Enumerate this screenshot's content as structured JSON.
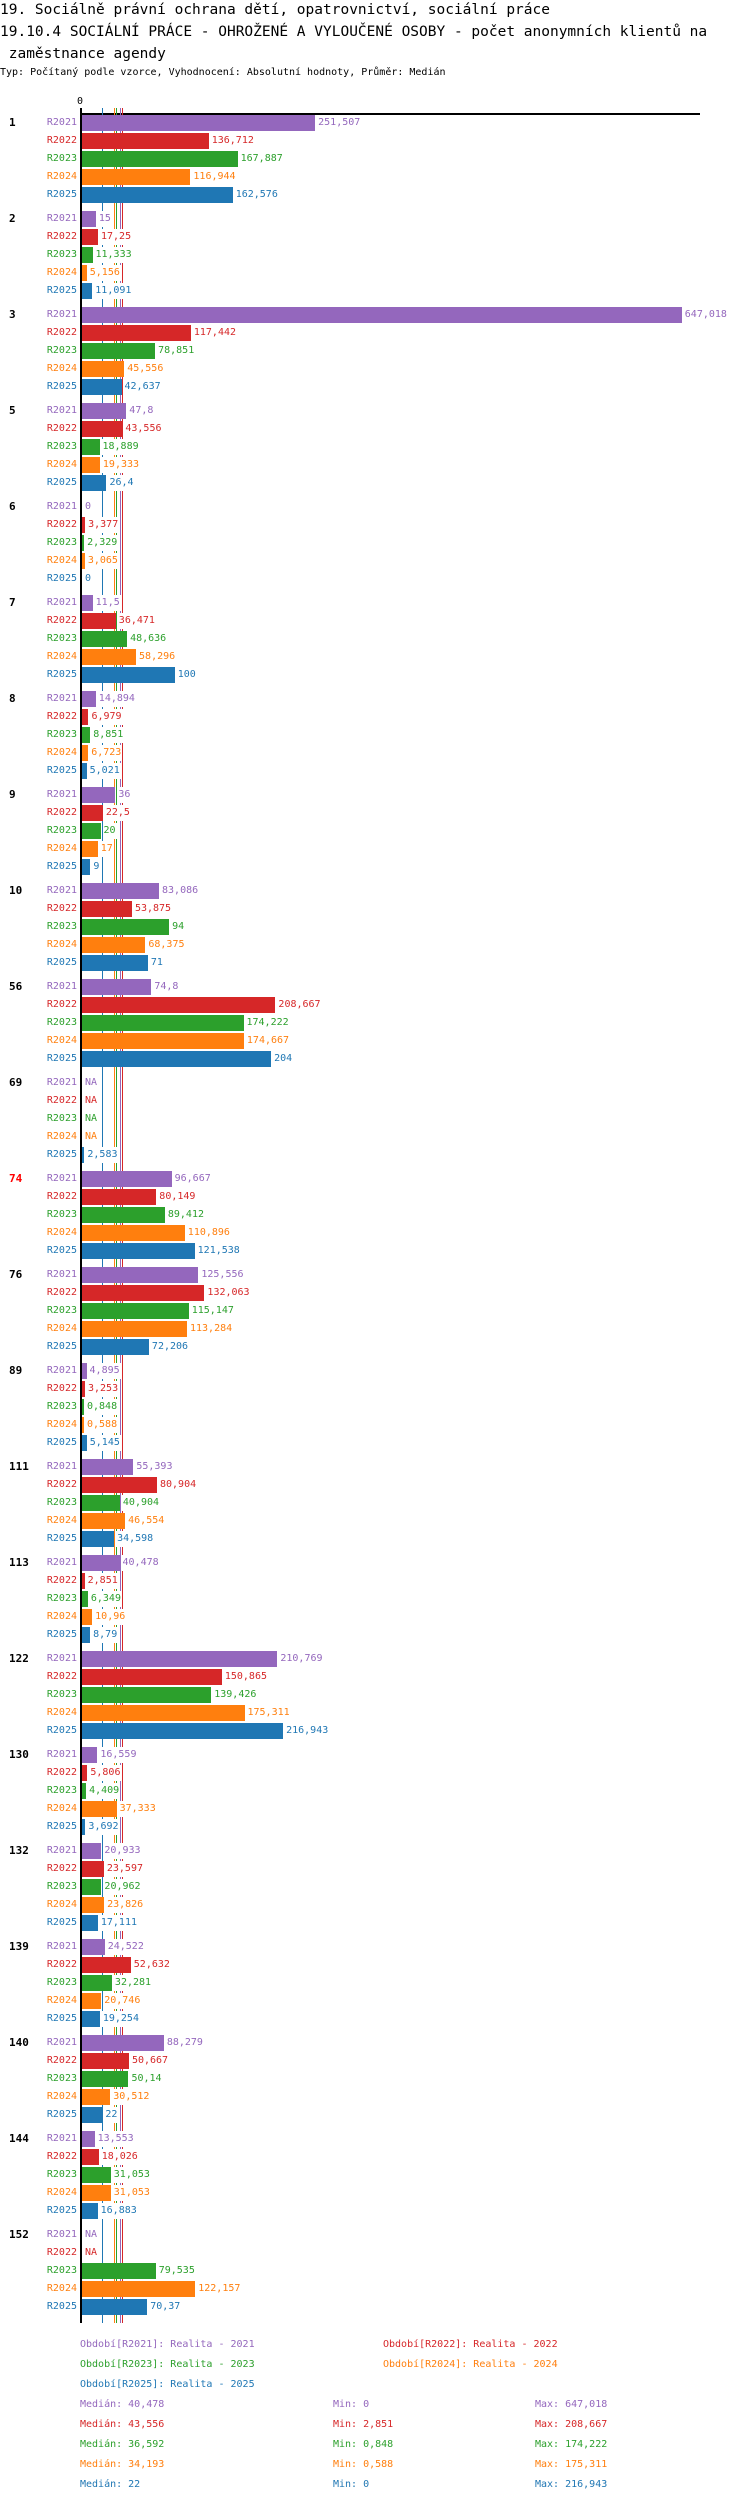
{
  "header": {
    "title_line1": "19. Sociálně právní ochrana dětí, opatrovnictví, sociální práce",
    "title_line2": "19.10.4 SOCIÁLNÍ PRÁCE - OHROŽENÉ A VYLOUČENÉ OSOBY - počet anonymních klientů na",
    "title_line3": " zaměstnance agendy",
    "subtitle": "Typ: Počítaný podle vzorce, Vyhodnocení: Absolutní hodnoty, Průměr: Medián"
  },
  "chart_data": {
    "type": "bar",
    "orientation": "horizontal",
    "title": "19.10.4 SOCIÁLNÍ PRÁCE - OHROŽENÉ A VYLOUČENÉ OSOBY - počet anonymních klientů na zaměstnance agendy",
    "axis_zero_label": "0",
    "xlim": [
      0,
      670
    ],
    "series_names": [
      "R2021",
      "R2022",
      "R2023",
      "R2024",
      "R2025"
    ],
    "colors": [
      "#9467bd",
      "#d62728",
      "#2ca02c",
      "#ff7f0e",
      "#1f77b4"
    ],
    "na_label": "NA",
    "highlight_group": "74",
    "highlight_color": "#ff0000",
    "groups": [
      {
        "label": "1",
        "values": [
          251.507,
          136.712,
          167.887,
          116.944,
          162.576
        ]
      },
      {
        "label": "2",
        "values": [
          15,
          17.25,
          11.333,
          5.156,
          11.091
        ]
      },
      {
        "label": "3",
        "values": [
          647.018,
          117.442,
          78.851,
          45.556,
          42.637
        ]
      },
      {
        "label": "5",
        "values": [
          47.8,
          43.556,
          18.889,
          19.333,
          26.4
        ]
      },
      {
        "label": "6",
        "values": [
          0,
          3.377,
          2.329,
          3.065,
          0
        ]
      },
      {
        "label": "7",
        "values": [
          11.5,
          36.471,
          48.636,
          58.296,
          100
        ]
      },
      {
        "label": "8",
        "values": [
          14.894,
          6.979,
          8.851,
          6.723,
          5.021
        ]
      },
      {
        "label": "9",
        "values": [
          36,
          22.5,
          20,
          17,
          9
        ]
      },
      {
        "label": "10",
        "values": [
          83.086,
          53.875,
          94,
          68.375,
          71
        ]
      },
      {
        "label": "56",
        "values": [
          74.8,
          208.667,
          174.222,
          174.667,
          204
        ]
      },
      {
        "label": "69",
        "values": [
          null,
          null,
          null,
          null,
          2.583
        ]
      },
      {
        "label": "74",
        "values": [
          96.667,
          80.149,
          89.412,
          110.896,
          121.538
        ]
      },
      {
        "label": "76",
        "values": [
          125.556,
          132.063,
          115.147,
          113.284,
          72.206
        ]
      },
      {
        "label": "89",
        "values": [
          4.895,
          3.253,
          0.848,
          0.588,
          5.145
        ]
      },
      {
        "label": "111",
        "values": [
          55.393,
          80.904,
          40.904,
          46.554,
          34.598
        ]
      },
      {
        "label": "113",
        "values": [
          40.478,
          2.851,
          6.349,
          10.96,
          8.79
        ]
      },
      {
        "label": "122",
        "values": [
          210.769,
          150.865,
          139.426,
          175.311,
          216.943
        ]
      },
      {
        "label": "130",
        "values": [
          16.559,
          5.806,
          4.409,
          37.333,
          3.692
        ]
      },
      {
        "label": "132",
        "values": [
          20.933,
          23.597,
          20.962,
          23.826,
          17.111
        ]
      },
      {
        "label": "139",
        "values": [
          24.522,
          52.632,
          32.281,
          20.746,
          19.254
        ]
      },
      {
        "label": "140",
        "values": [
          88.279,
          50.667,
          50.14,
          30.512,
          22
        ]
      },
      {
        "label": "144",
        "values": [
          13.553,
          18.026,
          31.053,
          31.053,
          16.883
        ]
      },
      {
        "label": "152",
        "values": [
          null,
          null,
          79.535,
          122.157,
          70.37
        ]
      }
    ],
    "legend": [
      "Období[R2021]: Realita - 2021",
      "Období[R2022]: Realita - 2022",
      "Období[R2023]: Realita - 2023",
      "Období[R2024]: Realita - 2024",
      "Období[R2025]: Realita - 2025"
    ],
    "stats": [
      {
        "median": "Medián: 40,478",
        "min": "Min: 0",
        "max": "Max: 647,018",
        "median_value": 40.478
      },
      {
        "median": "Medián: 43,556",
        "min": "Min: 2,851",
        "max": "Max: 208,667",
        "median_value": 43.556
      },
      {
        "median": "Medián: 36,592",
        "min": "Min: 0,848",
        "max": "Max: 174,222",
        "median_value": 36.592
      },
      {
        "median": "Medián: 34,193",
        "min": "Min: 0,588",
        "max": "Max: 175,311",
        "median_value": 34.193
      },
      {
        "median": "Medián: 22",
        "min": "Min: 0",
        "max": "Max: 216,943",
        "median_value": 22
      }
    ]
  }
}
